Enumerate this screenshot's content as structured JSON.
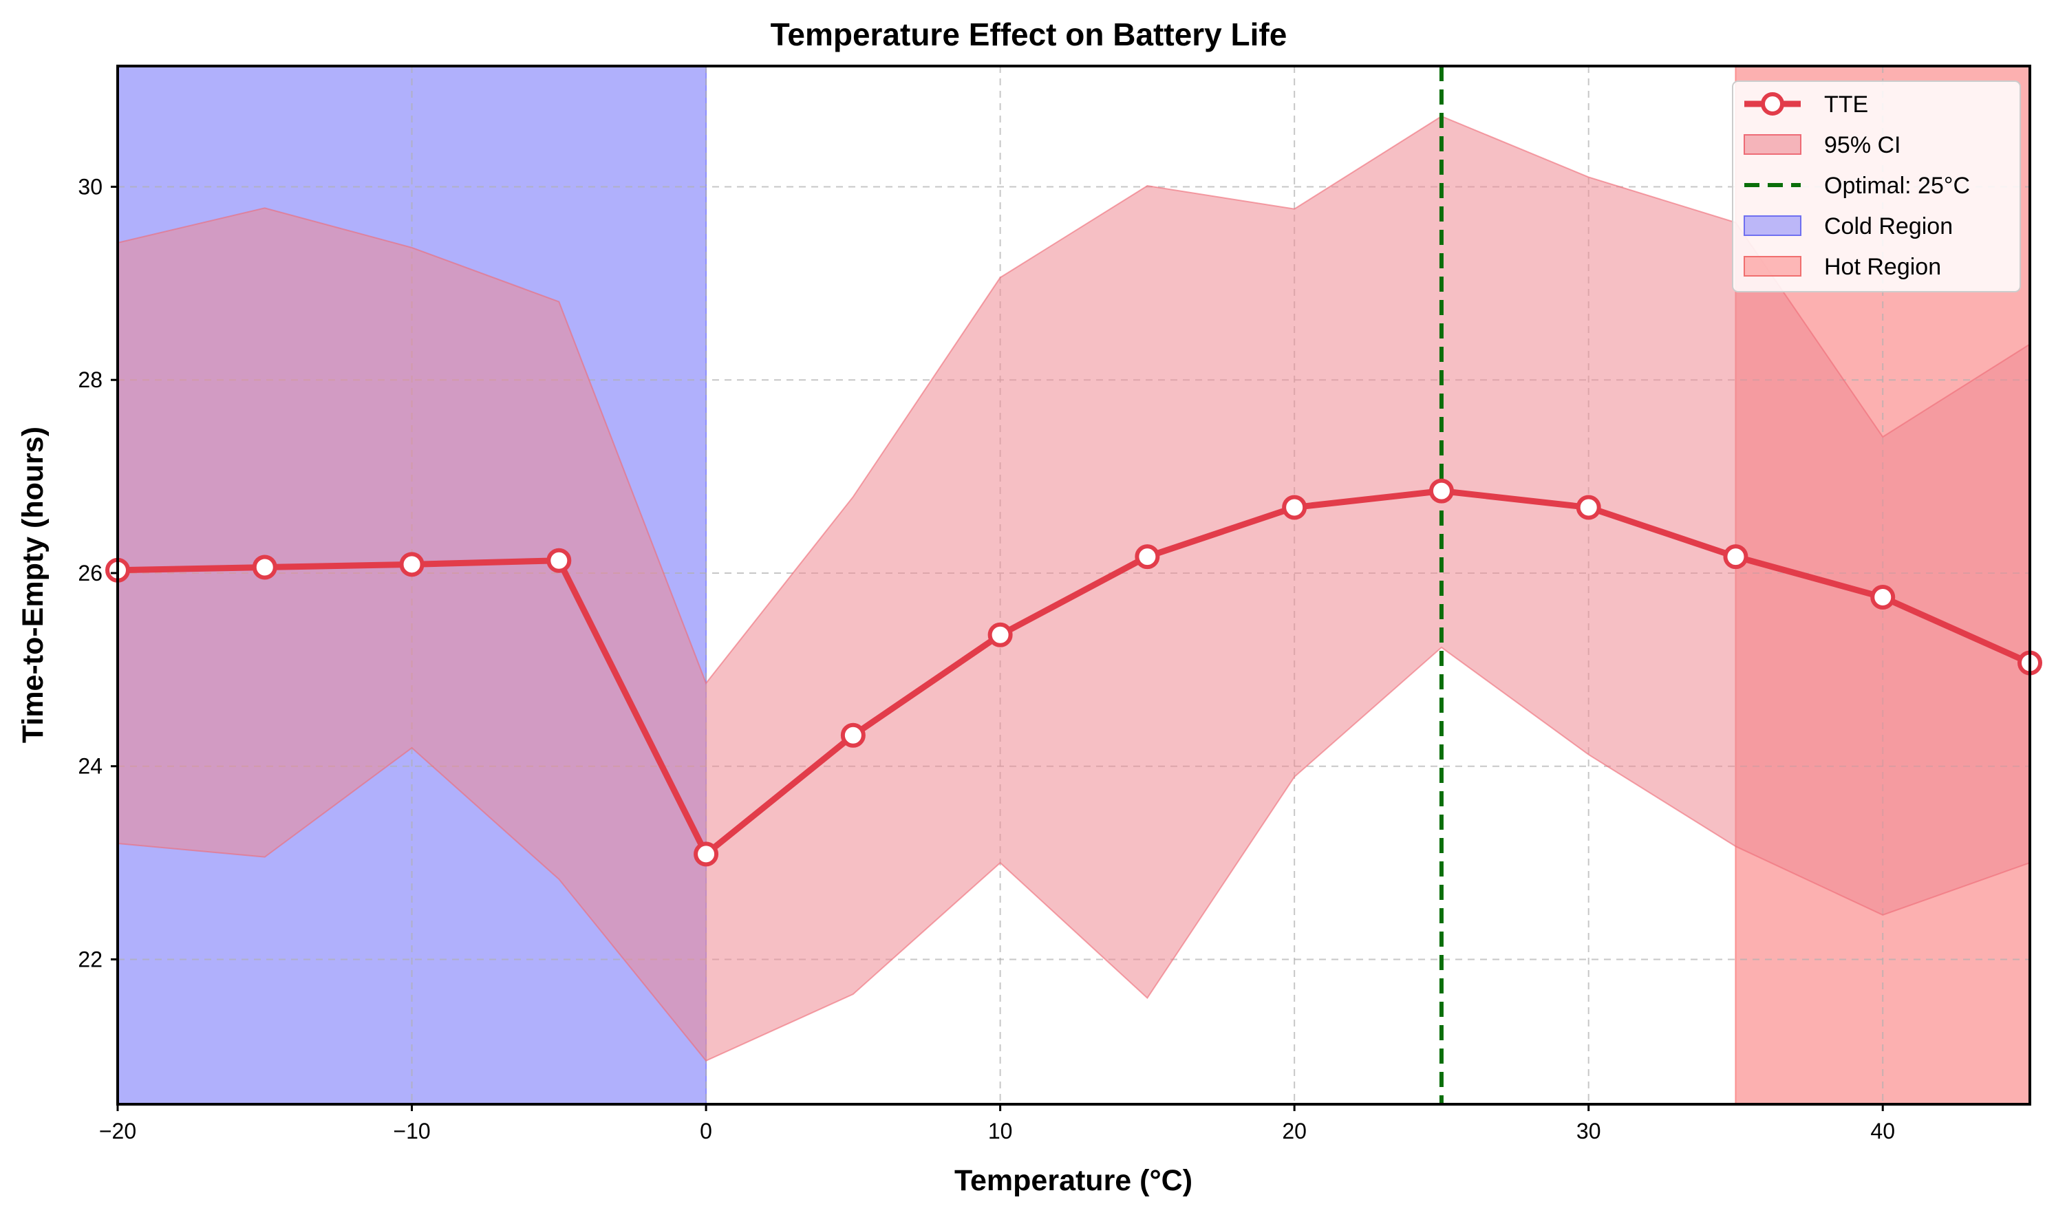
{
  "chart_data": {
    "type": "line",
    "title": "Temperature Effect on Battery Life",
    "xlabel": "Temperature (°C)",
    "ylabel": "Time-to-Empty (hours)",
    "xlim": [
      -20,
      45
    ],
    "ylim": [
      20.5,
      31.25
    ],
    "xticks": [
      -20,
      -10,
      0,
      10,
      20,
      30,
      40
    ],
    "xtick_labels": [
      "−20",
      "−10",
      "0",
      "10",
      "20",
      "30",
      "40"
    ],
    "yticks": [
      22,
      24,
      26,
      28,
      30
    ],
    "ytick_labels": [
      "22",
      "24",
      "26",
      "28",
      "30"
    ],
    "grid": true,
    "x": [
      -20,
      -15,
      -10,
      -5,
      0,
      5,
      10,
      15,
      20,
      25,
      30,
      35,
      40,
      45
    ],
    "series": [
      {
        "name": "TTE",
        "values": [
          26.03,
          26.06,
          26.09,
          26.13,
          23.09,
          24.32,
          25.36,
          26.17,
          26.68,
          26.85,
          26.68,
          26.17,
          25.75,
          25.07
        ],
        "color": "#e23c4a"
      }
    ],
    "ci": {
      "name": "95% CI",
      "lower": [
        23.2,
        23.06,
        24.19,
        22.83,
        20.95,
        21.64,
        23.0,
        21.6,
        23.89,
        25.23,
        24.12,
        23.17,
        22.46,
        23.0
      ],
      "upper": [
        29.42,
        29.78,
        29.37,
        28.81,
        24.86,
        26.79,
        29.06,
        30.01,
        29.77,
        30.73,
        30.1,
        29.63,
        27.41,
        28.37
      ],
      "color": "#ee8b94"
    },
    "optimal": {
      "label": "Optimal: 25°C",
      "x": 25,
      "color": "#0a6e0a"
    },
    "regions": [
      {
        "name": "Cold Region",
        "x0": -20,
        "x1": 0,
        "color": "#8f8ffb"
      },
      {
        "name": "Hot Region",
        "x0": 35,
        "x1": 45,
        "color": "#fb8f8f"
      }
    ],
    "legend": {
      "position": "top-right",
      "entries": [
        "TTE",
        "95% CI",
        "Optimal: 25°C",
        "Cold Region",
        "Hot Region"
      ]
    }
  }
}
